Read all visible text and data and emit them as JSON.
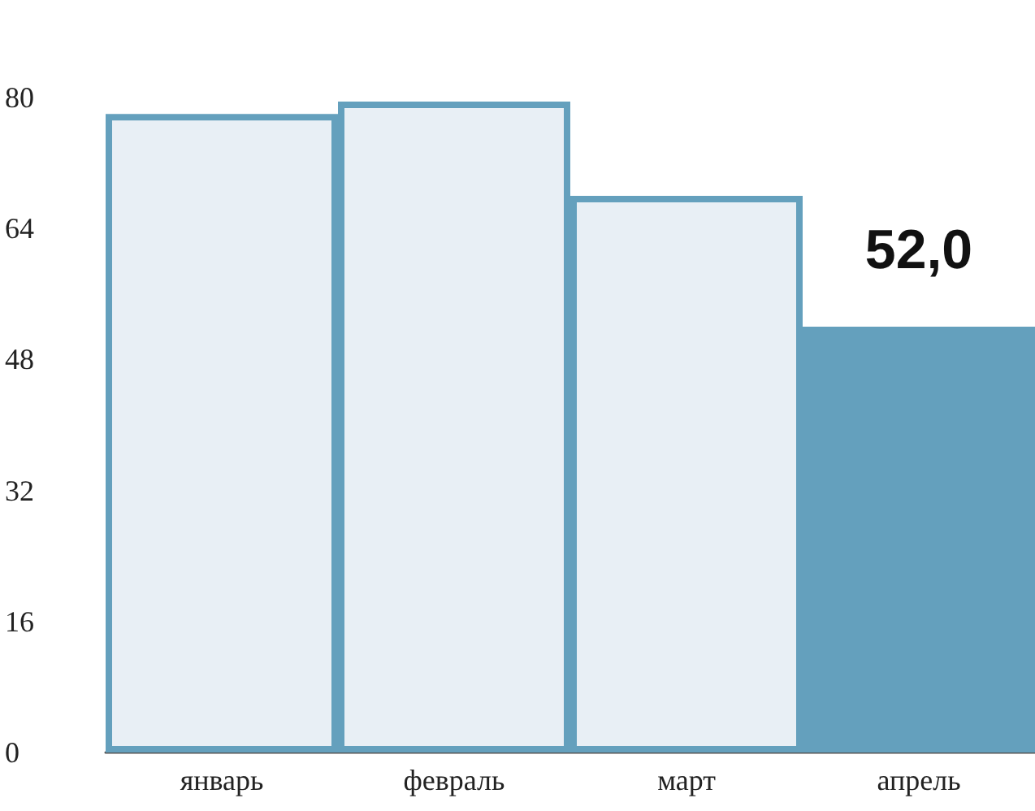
{
  "chart_data": {
    "type": "bar",
    "categories": [
      "январь",
      "февраль",
      "март",
      "апрель"
    ],
    "values": [
      78,
      79.5,
      68,
      52
    ],
    "color": "#64a0bd",
    "colors": [
      "#e8eff5",
      "#e8eff5",
      "#e8eff5",
      "#64a0bd"
    ],
    "value_labels": [
      null,
      null,
      null,
      "52,0"
    ],
    "ylim": [
      0,
      80
    ],
    "yticks": [
      0,
      16,
      32,
      48,
      64,
      80
    ],
    "grid": false
  }
}
